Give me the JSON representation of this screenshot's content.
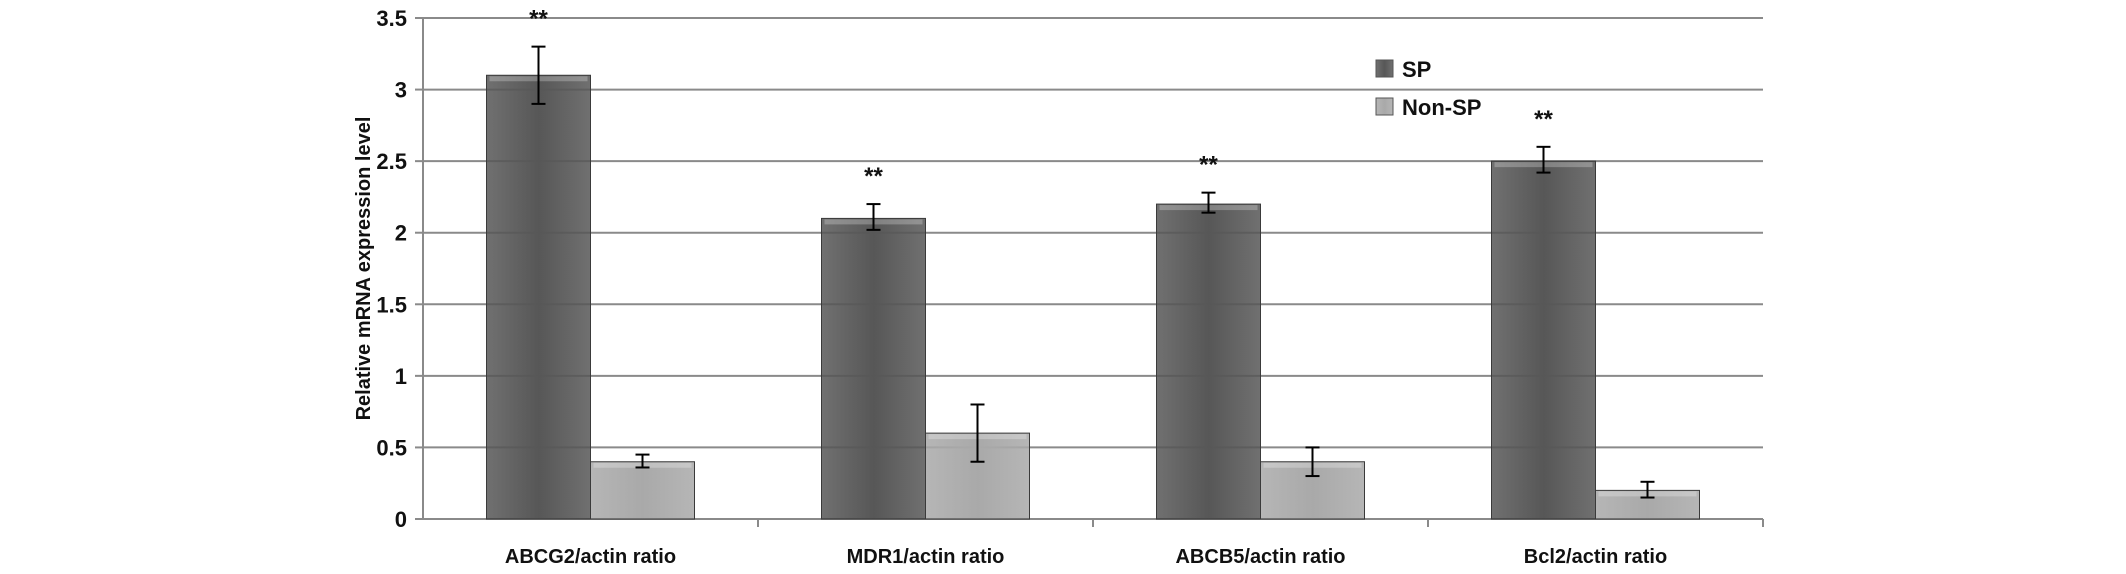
{
  "chart_data": {
    "type": "bar",
    "title": "",
    "xlabel": "",
    "ylabel": "Relative mRNA expression level",
    "ylim": [
      0,
      3.5
    ],
    "yticks": [
      "0",
      "0.5",
      "1",
      "1.5",
      "2",
      "2.5",
      "3",
      "3.5"
    ],
    "grid": true,
    "legend_position": "top-right",
    "categories": [
      "ABCG2/actin ratio",
      "MDR1/actin ratio",
      "ABCB5/actin ratio",
      "Bcl2/actin ratio"
    ],
    "series": [
      {
        "name": "SP",
        "color": "#575757",
        "values": [
          3.1,
          2.1,
          2.2,
          2.5
        ],
        "error_low": [
          2.9,
          2.02,
          2.14,
          2.42
        ],
        "error_high": [
          3.3,
          2.2,
          2.28,
          2.6
        ],
        "annotations": [
          "**",
          "**",
          "**",
          "**"
        ]
      },
      {
        "name": "Non-SP",
        "color": "#a9a9a9",
        "values": [
          0.4,
          0.6,
          0.4,
          0.2
        ],
        "error_low": [
          0.36,
          0.4,
          0.3,
          0.15
        ],
        "error_high": [
          0.45,
          0.8,
          0.5,
          0.26
        ]
      }
    ]
  }
}
